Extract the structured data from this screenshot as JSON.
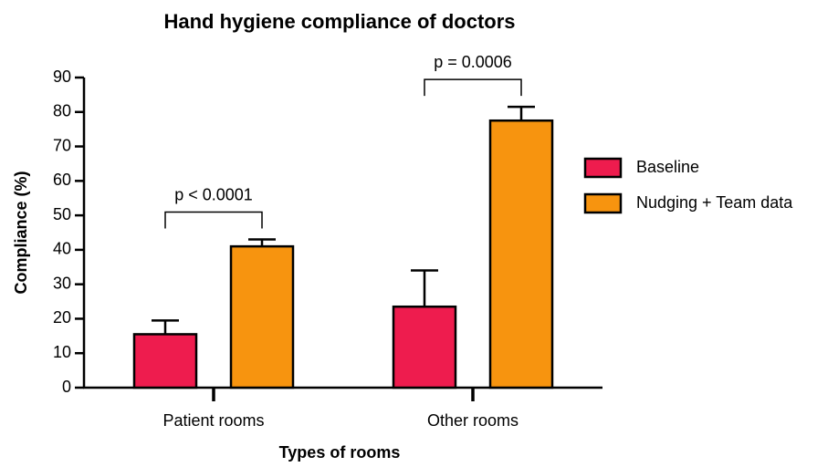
{
  "chart_data": {
    "type": "bar",
    "title": "Hand hygiene compliance of doctors",
    "xlabel": "Types of rooms",
    "ylabel": "Compliance (%)",
    "categories": [
      "Patient rooms",
      "Other rooms"
    ],
    "series": [
      {
        "name": "Baseline",
        "color": "#ee1c4e",
        "values": [
          15.5,
          23.5
        ],
        "errors": [
          4,
          10.5
        ]
      },
      {
        "name": "Nudging + Team data",
        "color": "#f7940f",
        "values": [
          41,
          77.5
        ],
        "errors": [
          2,
          4
        ]
      }
    ],
    "annotations": [
      "p < 0.0001",
      "p = 0.0006"
    ],
    "ylim": [
      0,
      90
    ],
    "yticks": [
      0,
      10,
      20,
      30,
      40,
      50,
      60,
      70,
      80,
      90
    ],
    "legend": "right"
  }
}
